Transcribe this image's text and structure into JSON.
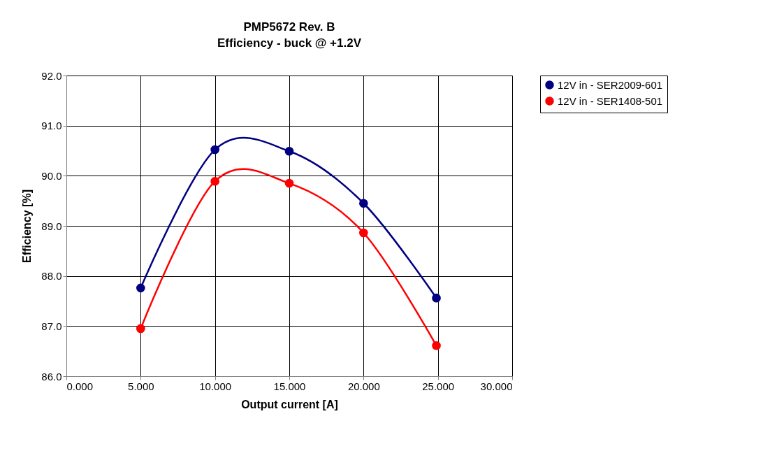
{
  "chart_data": {
    "type": "line",
    "title": "PMP5672 Rev. B",
    "subtitle": "Efficiency - buck @ +1.2V",
    "xlabel": "Output current [A]",
    "ylabel": "Efficiency [%]",
    "x": [
      5,
      10,
      15,
      20,
      24.9
    ],
    "series": [
      {
        "name": "12V in - SER2009-601",
        "color": "#000080",
        "values": [
          87.76,
          90.52,
          90.49,
          89.45,
          87.56
        ]
      },
      {
        "name": "12V in - SER1408-501",
        "color": "#ff0000",
        "values": [
          86.95,
          89.89,
          89.85,
          88.86,
          86.61
        ]
      }
    ],
    "xlim": [
      0,
      30
    ],
    "xticks": [
      {
        "value": 0,
        "label": "0.000"
      },
      {
        "value": 5,
        "label": "5.000"
      },
      {
        "value": 10,
        "label": "10.000"
      },
      {
        "value": 15,
        "label": "15.000"
      },
      {
        "value": 20,
        "label": "20.000"
      },
      {
        "value": 25,
        "label": "25.000"
      },
      {
        "value": 30,
        "label": "30.000"
      }
    ],
    "ylim": [
      86,
      92
    ],
    "yticks": [
      {
        "value": 86,
        "label": "86.0"
      },
      {
        "value": 87,
        "label": "87.0"
      },
      {
        "value": 88,
        "label": "88.0"
      },
      {
        "value": 89,
        "label": "89.0"
      },
      {
        "value": 90,
        "label": "90.0"
      },
      {
        "value": 91,
        "label": "91.0"
      },
      {
        "value": 92,
        "label": "92.0"
      }
    ],
    "grid": true,
    "legend": "right",
    "marker": "circle",
    "line_style": "solid"
  }
}
